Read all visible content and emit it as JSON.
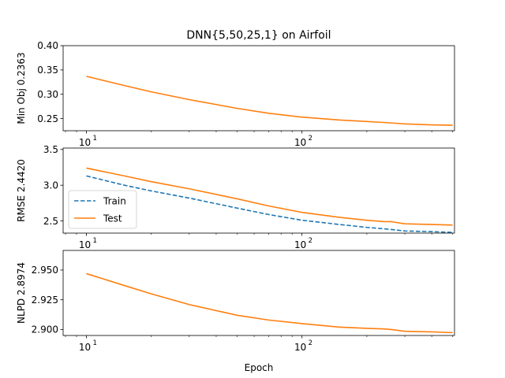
{
  "chart_data": {
    "type": "line",
    "title": "DNN{5,50,25,1} on Airfoil",
    "xlabel": "Epoch",
    "xscale": "log",
    "xlim": [
      7.8,
      510
    ],
    "x_ticks": [
      {
        "value": 10,
        "base": "10",
        "exp": "1"
      },
      {
        "value": 100,
        "base": "10",
        "exp": "2"
      }
    ],
    "subplots": [
      {
        "ylabel": "Min Obj 0.2363",
        "ylim": [
          0.225,
          0.4
        ],
        "y_ticks": [
          0.25,
          0.3,
          0.35,
          0.4
        ],
        "y_tick_labels": [
          "0.25",
          "0.30",
          "0.35",
          "0.40"
        ],
        "legend": false,
        "series": [
          {
            "name": "",
            "color": "#ff7f0e",
            "dash": "solid",
            "x": [
              10,
              15,
              20,
              30,
              50,
              70,
              100,
              150,
              200,
              240,
              260,
              300,
              400,
              500
            ],
            "y": [
              0.337,
              0.318,
              0.305,
              0.289,
              0.271,
              0.261,
              0.253,
              0.247,
              0.244,
              0.242,
              0.241,
              0.239,
              0.237,
              0.2363
            ]
          }
        ]
      },
      {
        "ylabel": "RMSE 2.4420",
        "ylim": [
          2.33,
          3.52
        ],
        "y_ticks": [
          2.5,
          3.0,
          3.5
        ],
        "y_tick_labels": [
          "2.5",
          "3.0",
          "3.5"
        ],
        "legend": true,
        "legend_loc": "lower-left",
        "series": [
          {
            "name": "Train",
            "color": "#1f77b4",
            "dash": "dashed",
            "x": [
              10,
              15,
              20,
              30,
              50,
              70,
              100,
              150,
              200,
              240,
              260,
              300,
              400,
              500
            ],
            "y": [
              3.13,
              3.0,
              2.92,
              2.82,
              2.68,
              2.59,
              2.51,
              2.45,
              2.41,
              2.39,
              2.38,
              2.36,
              2.35,
              2.34
            ]
          },
          {
            "name": "Test",
            "color": "#ff7f0e",
            "dash": "solid",
            "x": [
              10,
              15,
              20,
              30,
              50,
              70,
              100,
              150,
              200,
              240,
              260,
              300,
              400,
              500
            ],
            "y": [
              3.24,
              3.13,
              3.05,
              2.95,
              2.81,
              2.71,
              2.62,
              2.55,
              2.51,
              2.49,
              2.49,
              2.46,
              2.45,
              2.442
            ]
          }
        ]
      },
      {
        "ylabel": "NLPD 2.8974",
        "ylim": [
          2.895,
          2.9665
        ],
        "y_ticks": [
          2.9,
          2.925,
          2.95
        ],
        "y_tick_labels": [
          "2.900",
          "2.925",
          "2.950"
        ],
        "legend": false,
        "series": [
          {
            "name": "",
            "color": "#ff7f0e",
            "dash": "solid",
            "x": [
              10,
              15,
              20,
              30,
              50,
              70,
              100,
              150,
              200,
              240,
              260,
              300,
              400,
              500
            ],
            "y": [
              2.947,
              2.937,
              2.93,
              2.921,
              2.912,
              2.908,
              2.905,
              2.902,
              2.901,
              2.9005,
              2.9,
              2.8985,
              2.898,
              2.8974
            ]
          }
        ]
      }
    ]
  }
}
